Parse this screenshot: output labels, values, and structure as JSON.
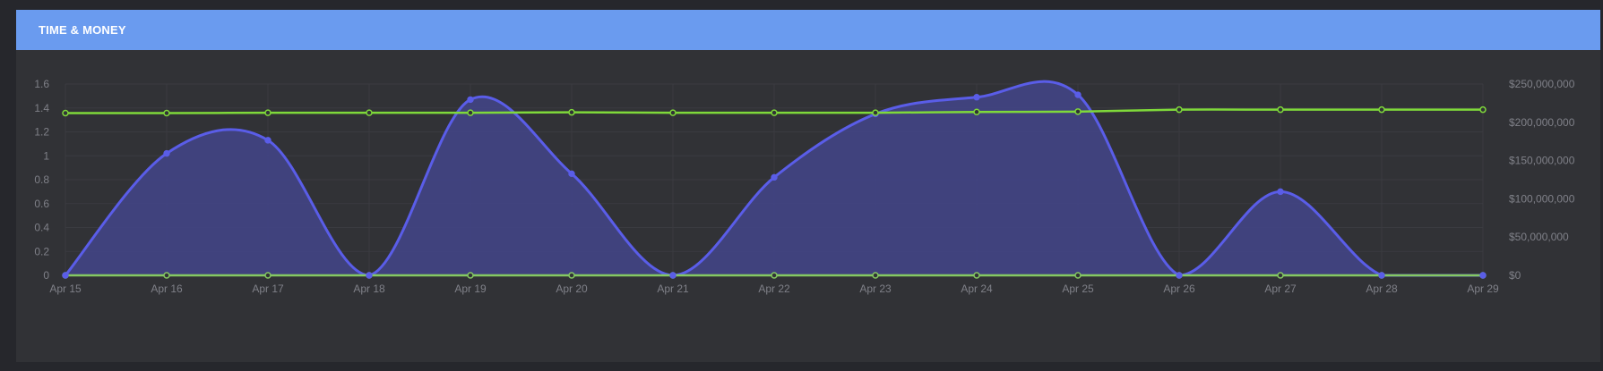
{
  "panel": {
    "title": "TIME & MONEY"
  },
  "colors": {
    "header": "#6a9bef",
    "background": "#313236",
    "grid": "#3a3b40",
    "hours_line": "#5a5de8",
    "hours_fill": "#43458a",
    "money_line": "#7fd93a",
    "baseline": "#85c962",
    "tick_text": "#7f8088"
  },
  "chart_data": {
    "type": "area",
    "categories": [
      "Apr 15",
      "Apr 16",
      "Apr 17",
      "Apr 18",
      "Apr 19",
      "Apr 20",
      "Apr 21",
      "Apr 22",
      "Apr 23",
      "Apr 24",
      "Apr 25",
      "Apr 26",
      "Apr 27",
      "Apr 28",
      "Apr 29"
    ],
    "y_left": {
      "ticks": [
        "1.6",
        "1.4",
        "1.2",
        "1",
        "0.8",
        "0.6",
        "0.4",
        "0.2",
        "0"
      ],
      "min": 0,
      "max": 1.6
    },
    "y_right": {
      "ticks": [
        "$250,000,000",
        "$200,000,000",
        "$150,000,000",
        "$100,000,000",
        "$50,000,000",
        "$0"
      ],
      "min": 0,
      "max": 250000000
    },
    "series": [
      {
        "axis": "left",
        "style": "area",
        "values": [
          0,
          1.02,
          1.13,
          0,
          1.47,
          0.85,
          0,
          0.82,
          1.35,
          1.49,
          1.51,
          0,
          0.7,
          0,
          0
        ]
      },
      {
        "axis": "right",
        "style": "line",
        "values": [
          212000000,
          212000000,
          212500000,
          212500000,
          212500000,
          213000000,
          212500000,
          212500000,
          212500000,
          213500000,
          214000000,
          216500000,
          216500000,
          216500000,
          216500000
        ]
      },
      {
        "axis": "left",
        "style": "line",
        "values": [
          0,
          0,
          0,
          0,
          0,
          0,
          0,
          0,
          0,
          0,
          0,
          0,
          0,
          0,
          0
        ]
      }
    ],
    "grid": true,
    "legend": "none"
  }
}
